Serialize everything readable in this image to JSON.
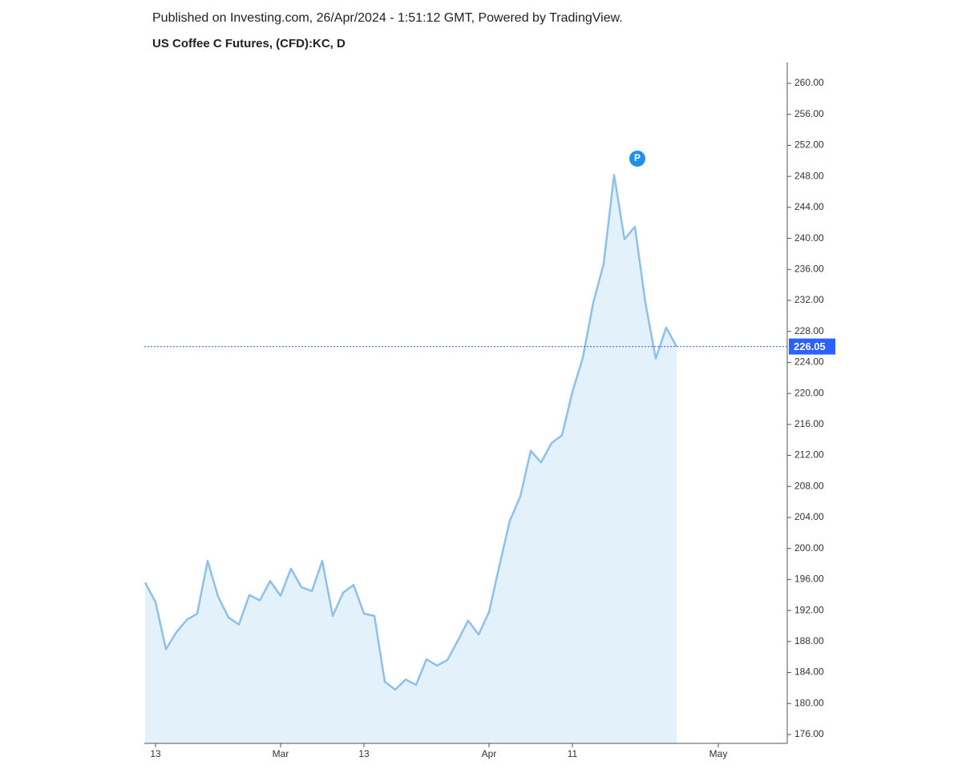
{
  "chart_data": {
    "type": "area",
    "subtitle": "Published on Investing.com, 26/Apr/2024 - 1:51:12 GMT, Powered by TradingView.",
    "title": "US Coffee C Futures, (CFD):KC, D",
    "watermark": "Investing.com",
    "annotation": "P",
    "categories": [
      null,
      "13",
      null,
      null,
      null,
      null,
      null,
      null,
      null,
      null,
      null,
      null,
      null,
      "Mar",
      null,
      null,
      null,
      null,
      null,
      null,
      null,
      "13",
      null,
      null,
      null,
      null,
      null,
      null,
      null,
      null,
      null,
      null,
      null,
      "Apr",
      null,
      null,
      null,
      null,
      null,
      null,
      null,
      "11",
      null,
      null,
      null,
      null,
      null,
      null,
      null,
      null,
      null,
      null,
      null,
      null,
      null,
      "May",
      null,
      null,
      null,
      null,
      null,
      null
    ],
    "series": [
      {
        "name": "KC",
        "color": "#8dc0ec",
        "fill": "#e3f1fb",
        "values": [
          195.6,
          193.1,
          187.0,
          189.2,
          190.8,
          191.6,
          198.4,
          193.8,
          191.1,
          190.2,
          194.0,
          193.3,
          195.8,
          193.9,
          197.4,
          195.0,
          194.5,
          198.4,
          191.3,
          194.3,
          195.3,
          191.6,
          191.3,
          182.8,
          181.8,
          183.1,
          182.4,
          185.7,
          184.9,
          185.6,
          188.1,
          190.7,
          188.9,
          191.8,
          197.8,
          203.6,
          206.7,
          212.6,
          211.1,
          213.6,
          214.6,
          220.2,
          224.6,
          231.7,
          236.7,
          248.2,
          239.9,
          241.5,
          231.7,
          224.5,
          228.5,
          226.05,
          null,
          null,
          null,
          null,
          null,
          null,
          null,
          null,
          null,
          null
        ]
      }
    ],
    "ylim": [
      174.86,
      262.69
    ],
    "yticks": [
      {
        "value": 176,
        "label": "176.00"
      },
      {
        "value": 180,
        "label": "180.00"
      },
      {
        "value": 184,
        "label": "184.00"
      },
      {
        "value": 188,
        "label": "188.00"
      },
      {
        "value": 192,
        "label": "192.00"
      },
      {
        "value": 196,
        "label": "196.00"
      },
      {
        "value": 200,
        "label": "200.00"
      },
      {
        "value": 204,
        "label": "204.00"
      },
      {
        "value": 208,
        "label": "208.00"
      },
      {
        "value": 212,
        "label": "212.00"
      },
      {
        "value": 216,
        "label": "216.00"
      },
      {
        "value": 220,
        "label": "220.00"
      },
      {
        "value": 224,
        "label": "224.00"
      },
      {
        "value": 228,
        "label": "228.00"
      },
      {
        "value": 232,
        "label": "232.00"
      },
      {
        "value": 236,
        "label": "236.00"
      },
      {
        "value": 240,
        "label": "240.00"
      },
      {
        "value": 244,
        "label": "244.00"
      },
      {
        "value": 248,
        "label": "248.00"
      },
      {
        "value": 252,
        "label": "252.00"
      },
      {
        "value": 256,
        "label": "256.00"
      },
      {
        "value": 260,
        "label": "260.00"
      }
    ],
    "price_line_color": "#2962ff"
  }
}
